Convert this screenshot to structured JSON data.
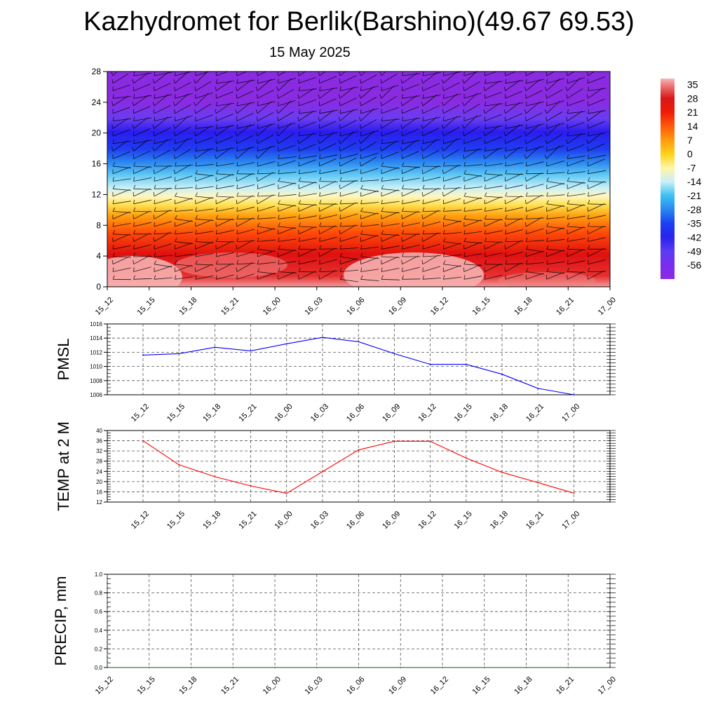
{
  "title": "Kazhydromet for Berlik(Barshino)(49.67 69.53)",
  "subtitle": "15 May 2025",
  "time_labels": [
    "15_12",
    "15_15",
    "15_18",
    "15_21",
    "16_00",
    "16_03",
    "16_06",
    "16_09",
    "16_12",
    "16_15",
    "16_18",
    "16_21",
    "17_00"
  ],
  "colors": {
    "pmsl_line": "#0000ff",
    "temp_line": "#ff0000",
    "precip_line": "#006400",
    "grid": "#555555"
  },
  "chart_data": [
    {
      "type": "heatmap",
      "description_units": "temperature with wind barbs",
      "y_ticks": [
        0,
        4,
        8,
        12,
        16,
        20,
        24,
        28
      ],
      "ylim": [
        0,
        28
      ],
      "categories": [
        "15_12",
        "15_15",
        "15_18",
        "15_21",
        "16_00",
        "16_03",
        "16_06",
        "16_09",
        "16_12",
        "16_15",
        "16_18",
        "16_21",
        "17_00"
      ],
      "colorbar": {
        "labels": [
          "35",
          "28",
          "21",
          "14",
          "7",
          "0",
          "-7",
          "-14",
          "-21",
          "-28",
          "-35",
          "-42",
          "-49",
          "-56"
        ],
        "range": [
          -63,
          38
        ]
      }
    },
    {
      "type": "line",
      "ylabel": "PMSL",
      "categories": [
        "15_12",
        "15_15",
        "15_18",
        "15_21",
        "16_00",
        "16_03",
        "16_06",
        "16_09",
        "16_12",
        "16_15",
        "16_18",
        "16_21",
        "17_00"
      ],
      "values": [
        1011.6,
        1011.8,
        1012.7,
        1012.2,
        1013.2,
        1014.1,
        1013.5,
        1011.8,
        1010.3,
        1010.3,
        1008.9,
        1006.9,
        1006.0
      ],
      "ylim": [
        1006,
        1016
      ],
      "y_ticks": [
        1006,
        1008,
        1010,
        1012,
        1014,
        1016
      ],
      "grid": true
    },
    {
      "type": "line",
      "ylabel": "TEMP at 2 M",
      "categories": [
        "15_12",
        "15_15",
        "15_18",
        "15_21",
        "16_00",
        "16_03",
        "16_06",
        "16_09",
        "16_12",
        "16_15",
        "16_18",
        "16_21",
        "17_00"
      ],
      "values": [
        36.0,
        26.6,
        21.9,
        18.3,
        15.4,
        23.9,
        32.4,
        35.8,
        35.8,
        29.2,
        23.6,
        19.6,
        15.5
      ],
      "ylim": [
        12,
        40
      ],
      "y_ticks": [
        12,
        16,
        20,
        24,
        28,
        32,
        36,
        40
      ],
      "grid": true
    },
    {
      "type": "line",
      "ylabel": "PRECIP, mm",
      "categories": [
        "15_12",
        "15_15",
        "15_18",
        "15_21",
        "16_00",
        "16_03",
        "16_06",
        "16_09",
        "16_12",
        "16_15",
        "16_18",
        "16_21",
        "17_00"
      ],
      "values": [
        0,
        0,
        0,
        0,
        0,
        0,
        0,
        0,
        0,
        0,
        0,
        0,
        0
      ],
      "ylim": [
        0,
        1
      ],
      "y_ticks": [
        "0.0",
        "0.2",
        "0.4",
        "0.6",
        "0.8",
        "1.0"
      ],
      "grid": true
    }
  ]
}
